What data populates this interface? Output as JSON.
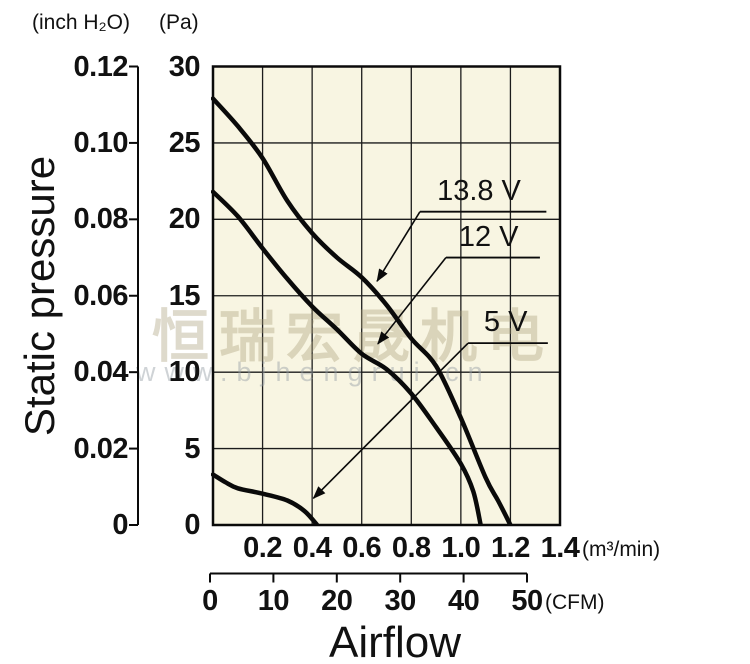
{
  "chart_data": {
    "type": "line",
    "x_axis": {
      "title": "Airflow",
      "m3_unit": "(m³/min)",
      "m3_ticks": [
        "0.2",
        "0.4",
        "0.6",
        "0.8",
        "1.0",
        "1.2",
        "1.4"
      ],
      "m3_tick_values": [
        0.2,
        0.4,
        0.6,
        0.8,
        1.0,
        1.2,
        1.4
      ],
      "m3_range": [
        0,
        1.4
      ],
      "cfm_unit": "(CFM)",
      "cfm_ticks": [
        "0",
        "10",
        "20",
        "30",
        "40",
        "50"
      ],
      "cfm_range": [
        0,
        50
      ]
    },
    "y_axis": {
      "title": "Static pressure",
      "left_unit": "(inch H₂O)",
      "right_unit": "(Pa)",
      "inch_ticks": [
        "0.12",
        "0.10",
        "0.08",
        "0.06",
        "0.04",
        "0.02",
        "0"
      ],
      "pa_ticks": [
        "30",
        "25",
        "20",
        "15",
        "10",
        "5",
        "0"
      ],
      "pa_range": [
        0,
        30
      ],
      "inch_range": [
        0,
        0.12
      ]
    },
    "grid": true,
    "series": [
      {
        "name": "13.8 V",
        "units": {
          "x": "m³/min",
          "y": "Pa"
        },
        "points": [
          [
            0,
            27.9
          ],
          [
            0.1,
            26.1
          ],
          [
            0.2,
            24.0
          ],
          [
            0.3,
            21.2
          ],
          [
            0.4,
            19.1
          ],
          [
            0.5,
            17.5
          ],
          [
            0.6,
            16.2
          ],
          [
            0.7,
            14.4
          ],
          [
            0.8,
            12.2
          ],
          [
            0.9,
            10.4
          ],
          [
            1.0,
            7.0
          ],
          [
            1.1,
            3.1
          ],
          [
            1.15,
            1.6
          ],
          [
            1.2,
            0
          ]
        ]
      },
      {
        "name": "12 V",
        "units": {
          "x": "m³/min",
          "y": "Pa"
        },
        "points": [
          [
            0,
            21.8
          ],
          [
            0.1,
            20.2
          ],
          [
            0.2,
            18.1
          ],
          [
            0.3,
            16.1
          ],
          [
            0.4,
            14.3
          ],
          [
            0.5,
            12.8
          ],
          [
            0.6,
            11.2
          ],
          [
            0.7,
            10.2
          ],
          [
            0.8,
            8.6
          ],
          [
            0.9,
            6.4
          ],
          [
            1.0,
            4.0
          ],
          [
            1.05,
            2.2
          ],
          [
            1.08,
            0
          ]
        ]
      },
      {
        "name": "5 V",
        "units": {
          "x": "m³/min",
          "y": "Pa"
        },
        "points": [
          [
            0,
            3.3
          ],
          [
            0.05,
            2.8
          ],
          [
            0.1,
            2.4
          ],
          [
            0.2,
            2.05
          ],
          [
            0.3,
            1.6
          ],
          [
            0.37,
            0.9
          ],
          [
            0.42,
            0
          ]
        ]
      }
    ],
    "annotations": [
      {
        "label": "13.8 V",
        "text_x": 0.904,
        "underline_pa": 20.5,
        "underline_x1": 0.835,
        "underline_x2": 1.345,
        "tip_x": 0.662,
        "tip_pa": 15.95
      },
      {
        "label": "12 V",
        "text_x": 0.992,
        "underline_pa": 17.5,
        "underline_x1": 0.94,
        "underline_x2": 1.319,
        "tip_x": 0.665,
        "tip_pa": 11.85
      },
      {
        "label": "5 V",
        "text_x": 1.093,
        "underline_pa": 11.9,
        "underline_x1": 1.029,
        "underline_x2": 1.351,
        "tip_x": 0.405,
        "tip_pa": 1.75
      }
    ]
  },
  "watermark": {
    "text_cn": "恒瑞宏晟机电",
    "text_url": "www.bjhengrui.cn"
  },
  "colors": {
    "plot_bg": "#f8f5e2",
    "grid_line": "#1c1c1c",
    "curve": "#0a0a0a",
    "text": "#111111"
  }
}
